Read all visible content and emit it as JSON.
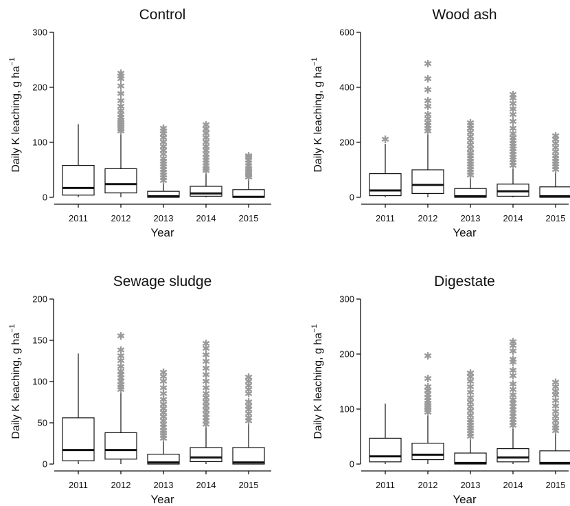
{
  "chart_data": [
    {
      "type": "box",
      "title": "Control",
      "xlabel": "Year",
      "ylabel": "Daily K leaching, g ha",
      "ylabel_sup": "−1",
      "ylim": [
        0,
        300
      ],
      "yticks": [
        0,
        100,
        200,
        300
      ],
      "categories": [
        "2011",
        "2012",
        "2013",
        "2014",
        "2015"
      ],
      "boxes": [
        {
          "whisker_low": 0,
          "q1": 4,
          "median": 17,
          "q3": 58,
          "whisker_high": 133,
          "outliers": []
        },
        {
          "whisker_low": 0,
          "q1": 8,
          "median": 24,
          "q3": 52,
          "whisker_high": 118,
          "outliers": [
            120,
            124,
            128,
            132,
            136,
            140,
            145,
            150,
            157,
            165,
            175,
            188,
            202,
            215,
            220,
            225
          ]
        },
        {
          "whisker_low": 0,
          "q1": 0,
          "median": 2,
          "q3": 11,
          "whisker_high": 26,
          "outliers": [
            30,
            35,
            40,
            45,
            50,
            55,
            60,
            65,
            70,
            78,
            85,
            92,
            100,
            108,
            115,
            120,
            125
          ]
        },
        {
          "whisker_low": 0,
          "q1": 2,
          "median": 7,
          "q3": 20,
          "whisker_high": 45,
          "outliers": [
            48,
            52,
            57,
            62,
            67,
            72,
            78,
            85,
            92,
            100,
            108,
            116,
            124,
            131
          ]
        },
        {
          "whisker_low": 0,
          "q1": 0,
          "median": 1,
          "q3": 14,
          "whisker_high": 33,
          "outliers": [
            36,
            40,
            44,
            48,
            52,
            57,
            62,
            67,
            72,
            75
          ]
        }
      ]
    },
    {
      "type": "box",
      "title": "Wood ash",
      "xlabel": "Year",
      "ylabel": "Daily K leaching, g ha",
      "ylabel_sup": "−1",
      "ylim": [
        0,
        600
      ],
      "yticks": [
        0,
        200,
        400,
        600
      ],
      "categories": [
        "2011",
        "2012",
        "2013",
        "2014",
        "2015"
      ],
      "boxes": [
        {
          "whisker_low": 0,
          "q1": 6,
          "median": 25,
          "q3": 86,
          "whisker_high": 195,
          "outliers": [
            210
          ]
        },
        {
          "whisker_low": 0,
          "q1": 14,
          "median": 45,
          "q3": 100,
          "whisker_high": 230,
          "outliers": [
            240,
            250,
            260,
            270,
            285,
            300,
            330,
            350,
            390,
            430,
            485
          ]
        },
        {
          "whisker_low": 0,
          "q1": 0,
          "median": 4,
          "q3": 32,
          "whisker_high": 75,
          "outliers": [
            80,
            90,
            100,
            110,
            120,
            130,
            140,
            150,
            160,
            175,
            190,
            205,
            220,
            235,
            250,
            260,
            270
          ]
        },
        {
          "whisker_low": 0,
          "q1": 4,
          "median": 22,
          "q3": 48,
          "whisker_high": 110,
          "outliers": [
            115,
            125,
            135,
            145,
            155,
            165,
            175,
            185,
            195,
            205,
            215,
            230,
            250,
            275,
            300,
            320,
            340,
            360,
            372
          ]
        },
        {
          "whisker_low": 0,
          "q1": 0,
          "median": 4,
          "q3": 38,
          "whisker_high": 95,
          "outliers": [
            100,
            110,
            120,
            130,
            140,
            150,
            165,
            180,
            195,
            210,
            222
          ]
        }
      ]
    },
    {
      "type": "box",
      "title": "Sewage sludge",
      "xlabel": "Year",
      "ylabel": "Daily K leaching, g ha",
      "ylabel_sup": "−1",
      "ylim": [
        0,
        200
      ],
      "yticks": [
        0,
        50,
        100,
        150,
        200
      ],
      "categories": [
        "2011",
        "2012",
        "2013",
        "2014",
        "2015"
      ],
      "boxes": [
        {
          "whisker_low": 0,
          "q1": 4,
          "median": 17,
          "q3": 56,
          "whisker_high": 134,
          "outliers": []
        },
        {
          "whisker_low": 0,
          "q1": 6,
          "median": 17,
          "q3": 38,
          "whisker_high": 88,
          "outliers": [
            90,
            93,
            96,
            100,
            104,
            108,
            112,
            118,
            125,
            131,
            138,
            155
          ]
        },
        {
          "whisker_low": 0,
          "q1": 0,
          "median": 2,
          "q3": 12,
          "whisker_high": 28,
          "outliers": [
            31,
            34,
            37,
            40,
            44,
            48,
            52,
            57,
            62,
            67,
            72,
            78,
            85,
            92,
            100,
            106,
            111
          ]
        },
        {
          "whisker_low": 0,
          "q1": 3,
          "median": 8,
          "q3": 20,
          "whisker_high": 44,
          "outliers": [
            48,
            52,
            56,
            60,
            65,
            70,
            75,
            80,
            85,
            92,
            100,
            108,
            116,
            124,
            132,
            140,
            146
          ]
        },
        {
          "whisker_low": 0,
          "q1": 0,
          "median": 2,
          "q3": 20,
          "whisker_high": 48,
          "outliers": [
            52,
            56,
            61,
            66,
            70,
            75,
            85,
            90,
            95,
            100,
            105
          ]
        }
      ]
    },
    {
      "type": "box",
      "title": "Digestate",
      "xlabel": "Year",
      "ylabel": "Daily K leaching, g ha",
      "ylabel_sup": "−1",
      "ylim": [
        0,
        300
      ],
      "yticks": [
        0,
        100,
        200,
        300
      ],
      "categories": [
        "2011",
        "2012",
        "2013",
        "2014",
        "2015"
      ],
      "boxes": [
        {
          "whisker_low": 0,
          "q1": 4,
          "median": 14,
          "q3": 47,
          "whisker_high": 110,
          "outliers": []
        },
        {
          "whisker_low": 0,
          "q1": 8,
          "median": 17,
          "q3": 38,
          "whisker_high": 90,
          "outliers": [
            94,
            98,
            102,
            106,
            110,
            115,
            120,
            126,
            133,
            140,
            155,
            196
          ]
        },
        {
          "whisker_low": 0,
          "q1": 0,
          "median": 2,
          "q3": 20,
          "whisker_high": 45,
          "outliers": [
            50,
            55,
            60,
            65,
            70,
            75,
            80,
            88,
            96,
            104,
            112,
            120,
            130,
            140,
            150,
            158,
            165
          ]
        },
        {
          "whisker_low": 0,
          "q1": 4,
          "median": 12,
          "q3": 28,
          "whisker_high": 65,
          "outliers": [
            70,
            75,
            80,
            86,
            92,
            98,
            104,
            110,
            116,
            125,
            135,
            145,
            160,
            170,
            185,
            190,
            205,
            215,
            222
          ]
        },
        {
          "whisker_low": 0,
          "q1": 0,
          "median": 2,
          "q3": 24,
          "whisker_high": 55,
          "outliers": [
            60,
            65,
            70,
            78,
            86,
            95,
            105,
            115,
            125,
            132,
            140,
            148
          ]
        }
      ]
    }
  ],
  "colors": {
    "axis": "#111111",
    "outlier": "#9a9a9a",
    "box_fill": "#ffffff"
  }
}
